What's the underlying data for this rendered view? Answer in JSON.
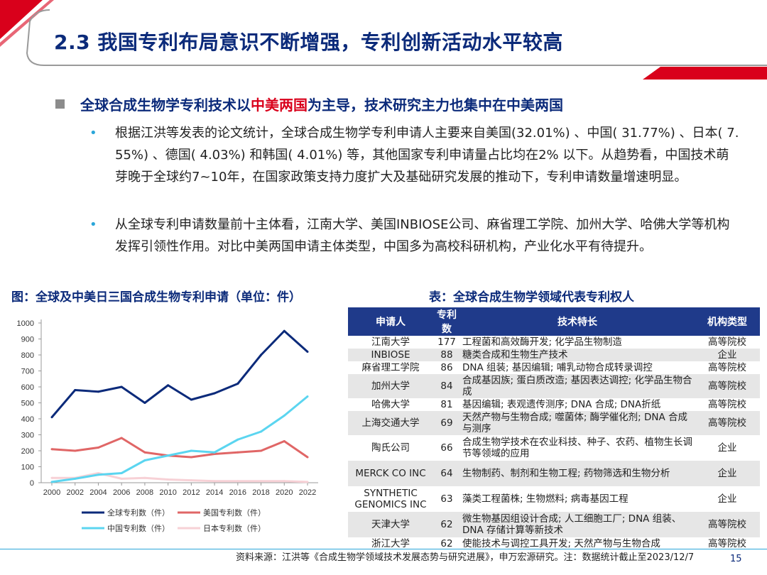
{
  "header": {
    "title": "2.3 我国专利布局意识不断增强，专利创新活动水平较高"
  },
  "summary": {
    "heading_pre": "全球合成生物学专利技术以",
    "heading_red": "中美两国",
    "heading_post": "为主导，技术研究主力也集中在中美两国",
    "para1": "根据江洪等发表的论文统计，全球合成生物学专利申请人主要来自美国(32.01%) 、中国( 31.77%) 、日本( 7. 55%) 、德国( 4.03%) 和韩国( 4.01%) 等，其他国家专利申请量占比均在2% 以下。从趋势看，中国技术萌芽晚于全球约7~10年，在国家政策支持力度扩大及基础研究发展的推动下，专利申请数量增速明显。",
    "para2": "从全球专利申请数量前十主体看，江南大学、美国INBIOSE公司、麻省理工学院、加州大学、哈佛大学等机构发挥引领性作用。对比中美两国申请主体类型，中国多为高校科研机构，产业化水平有待提升。"
  },
  "chart_title": "图：全球及中美日三国合成生物专利申请（单位：件）",
  "chart_data": {
    "type": "line",
    "x": [
      2000,
      2002,
      2004,
      2006,
      2008,
      2010,
      2012,
      2014,
      2016,
      2018,
      2020,
      2022
    ],
    "ylim": [
      0,
      1000
    ],
    "yticks": [
      0,
      100,
      200,
      300,
      400,
      500,
      600,
      700,
      800,
      900,
      1000
    ],
    "grid": false,
    "legend": "bottom",
    "series": [
      {
        "name": "全球专利数（件）",
        "color": "#0b2a7a",
        "values": [
          410,
          580,
          570,
          600,
          500,
          610,
          520,
          560,
          620,
          800,
          950,
          820
        ]
      },
      {
        "name": "美国专利数（件）",
        "color": "#e06666",
        "values": [
          210,
          200,
          220,
          280,
          190,
          170,
          160,
          180,
          190,
          200,
          260,
          160
        ]
      },
      {
        "name": "中国专利数（件）",
        "color": "#5bd5f0",
        "values": [
          5,
          25,
          50,
          60,
          140,
          170,
          200,
          190,
          270,
          320,
          420,
          540
        ]
      },
      {
        "name": "日本专利数（件）",
        "color": "#f7d1d6",
        "values": [
          30,
          30,
          60,
          25,
          30,
          20,
          15,
          10,
          10,
          10,
          10,
          5
        ]
      }
    ]
  },
  "table_title": "表：全球合成生物学领域代表专利权人",
  "table": {
    "headers": [
      "申请人",
      "专利数",
      "技术特长",
      "机构类型"
    ],
    "rows": [
      {
        "name": "江南大学",
        "count": "177",
        "spec": "工程菌和高效酶开发; 化学品生物制造",
        "type": "高等院校"
      },
      {
        "name": "INBIOSE",
        "count": "88",
        "spec": "糖类合成和生物生产技术",
        "type": "企业"
      },
      {
        "name": "麻省理工学院",
        "count": "86",
        "spec": "DNA 组装; 基因编辑; 哺乳动物合成转录调控",
        "type": "高等院校"
      },
      {
        "name": "加州大学",
        "count": "84",
        "spec": "合成基因族; 蛋白质改造; 基因表达调控; 化学品生物合成",
        "type": "高等院校"
      },
      {
        "name": "哈佛大学",
        "count": "81",
        "spec": "基因编辑; 表观遗传测序; DNA 合成; DNA折纸",
        "type": "高等院校"
      },
      {
        "name": "上海交通大学",
        "count": "69",
        "spec": "天然产物与生物合成; 噬菌体; 酶学催化剂; DNA 合成与测序",
        "type": "高等院校"
      },
      {
        "name": "陶氏公司",
        "count": "66",
        "spec": "合成生物学技术在农业科技、种子、农药、植物生长调节等领域的应用",
        "type": "企业"
      },
      {
        "name": "MERCK CO INC",
        "count": "64",
        "spec": "生物制药、制剂和生物工程; 药物筛选和生物分析",
        "type": "企业"
      },
      {
        "name": "SYNTHETIC GENOMICS INC",
        "count": "63",
        "spec": "藻类工程菌株; 生物燃料; 病毒基因工程",
        "type": "企业"
      },
      {
        "name": "天津大学",
        "count": "62",
        "spec": "微生物基因组设计合成; 人工细胞工厂; DNA 组装、DNA 存储计算等新技术",
        "type": "高等院校"
      },
      {
        "name": "浙江大学",
        "count": "62",
        "spec": "使能技术与调控工具开发; 天然产物与生物合成",
        "type": "高等院校"
      }
    ]
  },
  "footer": {
    "source": "资料来源：江洪等《合成生物学领域技术发展态势与研究进展》，申万宏源研究。注：数据统计截止至2023/12/7",
    "page": "15"
  }
}
